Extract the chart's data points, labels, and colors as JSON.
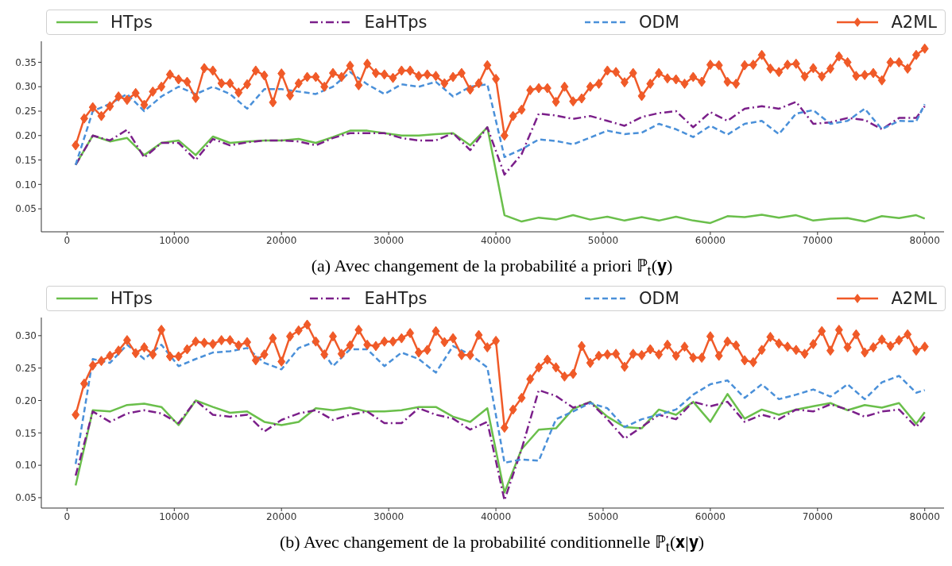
{
  "chart_data": [
    {
      "type": "line",
      "title": "(a) Avec changement de la probabilité a priori ℙ$_{t}$(𝐲)",
      "legend": "top",
      "x": [
        800,
        2400,
        4000,
        5600,
        7200,
        8800,
        10400,
        12000,
        13600,
        15200,
        16800,
        18400,
        20000,
        21600,
        23200,
        24800,
        26400,
        28000,
        29600,
        31200,
        32800,
        34400,
        36000,
        37600,
        39200,
        40800,
        42400,
        44000,
        45600,
        47200,
        48800,
        50400,
        52000,
        53600,
        55200,
        56800,
        58400,
        60000,
        61600,
        63200,
        64800,
        66400,
        68000,
        69600,
        71200,
        72800,
        74400,
        76000,
        77600,
        79200,
        80000
      ],
      "xlim": [
        -2400,
        81800
      ],
      "xticks": [
        0,
        10000,
        20000,
        30000,
        40000,
        50000,
        60000,
        70000,
        80000
      ],
      "ylim": [
        0.003,
        0.393
      ],
      "yticks": [
        {
          "value": 0.05,
          "label": "0.05"
        },
        {
          "value": 0.1,
          "label": "0.10"
        },
        {
          "value": 0.15,
          "label": "0.15"
        },
        {
          "value": 0.2,
          "label": "0.20"
        },
        {
          "value": 0.25,
          "label": "0.25"
        },
        {
          "value": 0.3,
          "label": "0.30"
        },
        {
          "value": 0.35,
          "label": "0.35"
        }
      ],
      "series": [
        {
          "name": "HTps",
          "color": "#6abf4b",
          "line_style": "solid",
          "marker": "none",
          "values": [
            0.14,
            0.2,
            0.188,
            0.195,
            0.16,
            0.185,
            0.19,
            0.16,
            0.198,
            0.185,
            0.188,
            0.19,
            0.19,
            0.193,
            0.185,
            0.197,
            0.21,
            0.21,
            0.205,
            0.2,
            0.2,
            0.203,
            0.205,
            0.18,
            0.217,
            0.037,
            0.024,
            0.032,
            0.028,
            0.037,
            0.028,
            0.034,
            0.026,
            0.033,
            0.026,
            0.034,
            0.026,
            0.021,
            0.035,
            0.033,
            0.038,
            0.032,
            0.037,
            0.026,
            0.03,
            0.031,
            0.024,
            0.035,
            0.031,
            0.037,
            0.03
          ]
        },
        {
          "name": "EaHTps",
          "color": "#7b1f8a",
          "line_style": "dashdot",
          "marker": "none",
          "values": [
            0.14,
            0.2,
            0.19,
            0.212,
            0.155,
            0.185,
            0.185,
            0.15,
            0.193,
            0.18,
            0.186,
            0.19,
            0.19,
            0.188,
            0.18,
            0.195,
            0.205,
            0.205,
            0.205,
            0.195,
            0.19,
            0.19,
            0.205,
            0.17,
            0.217,
            0.12,
            0.162,
            0.245,
            0.241,
            0.234,
            0.24,
            0.23,
            0.22,
            0.238,
            0.246,
            0.25,
            0.217,
            0.248,
            0.23,
            0.255,
            0.26,
            0.255,
            0.269,
            0.224,
            0.227,
            0.236,
            0.232,
            0.213,
            0.236,
            0.236,
            0.26
          ]
        },
        {
          "name": "ODM",
          "color": "#4a90d9",
          "line_style": "dashed",
          "marker": "none",
          "values": [
            0.14,
            0.25,
            0.265,
            0.285,
            0.25,
            0.28,
            0.3,
            0.285,
            0.3,
            0.285,
            0.255,
            0.295,
            0.295,
            0.29,
            0.285,
            0.3,
            0.33,
            0.305,
            0.285,
            0.305,
            0.3,
            0.31,
            0.28,
            0.3,
            0.305,
            0.156,
            0.172,
            0.192,
            0.189,
            0.182,
            0.196,
            0.21,
            0.203,
            0.206,
            0.224,
            0.213,
            0.197,
            0.22,
            0.202,
            0.224,
            0.23,
            0.203,
            0.245,
            0.252,
            0.224,
            0.23,
            0.255,
            0.213,
            0.23,
            0.229,
            0.264
          ]
        },
        {
          "name": "A2ML",
          "color": "#f05a28",
          "line_style": "solid",
          "marker": "diamond",
          "x": [
            800,
            1600,
            2400,
            3200,
            4000,
            4800,
            5600,
            6400,
            7200,
            8000,
            8800,
            9600,
            10400,
            11200,
            12000,
            12800,
            13600,
            14400,
            15200,
            16000,
            16800,
            17600,
            18400,
            19200,
            20000,
            20800,
            21600,
            22400,
            23200,
            24000,
            24800,
            25600,
            26400,
            27200,
            28000,
            28800,
            29600,
            30400,
            31200,
            32000,
            32800,
            33600,
            34400,
            35200,
            36000,
            36800,
            37600,
            38400,
            39200,
            40000,
            40800,
            41600,
            42400,
            43200,
            44000,
            44800,
            45600,
            46400,
            47200,
            48000,
            48800,
            49600,
            50400,
            51200,
            52000,
            52800,
            53600,
            54400,
            55200,
            56000,
            56800,
            57600,
            58400,
            59200,
            60000,
            60800,
            61600,
            62400,
            63200,
            64000,
            64800,
            65600,
            66400,
            67200,
            68000,
            68800,
            69600,
            70400,
            71200,
            72000,
            72800,
            73600,
            74400,
            75200,
            76000,
            76800,
            77600,
            78400,
            79200,
            80000
          ],
          "values": [
            0.18,
            0.235,
            0.258,
            0.24,
            0.26,
            0.28,
            0.273,
            0.287,
            0.263,
            0.29,
            0.3,
            0.325,
            0.315,
            0.31,
            0.277,
            0.338,
            0.333,
            0.307,
            0.307,
            0.288,
            0.305,
            0.333,
            0.323,
            0.268,
            0.327,
            0.282,
            0.307,
            0.32,
            0.32,
            0.3,
            0.328,
            0.32,
            0.343,
            0.303,
            0.347,
            0.328,
            0.325,
            0.318,
            0.333,
            0.333,
            0.322,
            0.325,
            0.322,
            0.307,
            0.32,
            0.328,
            0.294,
            0.307,
            0.344,
            0.316,
            0.2,
            0.24,
            0.253,
            0.293,
            0.297,
            0.297,
            0.269,
            0.3,
            0.27,
            0.276,
            0.3,
            0.306,
            0.333,
            0.33,
            0.309,
            0.328,
            0.281,
            0.306,
            0.328,
            0.317,
            0.315,
            0.306,
            0.32,
            0.31,
            0.345,
            0.344,
            0.31,
            0.306,
            0.344,
            0.345,
            0.365,
            0.337,
            0.33,
            0.345,
            0.347,
            0.321,
            0.338,
            0.321,
            0.337,
            0.362,
            0.35,
            0.322,
            0.324,
            0.328,
            0.313,
            0.35,
            0.35,
            0.337,
            0.365,
            0.378
          ]
        }
      ]
    },
    {
      "type": "line",
      "title": "(b) Avec changement de la probabilité conditionnelle ℙ$_{t}$(𝐱|𝐲)",
      "legend": "top",
      "x": [
        800,
        2400,
        4000,
        5600,
        7200,
        8800,
        10400,
        12000,
        13600,
        15200,
        16800,
        18400,
        20000,
        21600,
        23200,
        24800,
        26400,
        28000,
        29600,
        31200,
        32800,
        34400,
        36000,
        37600,
        39200,
        40800,
        42400,
        44000,
        45600,
        47200,
        48800,
        50400,
        52000,
        53600,
        55200,
        56800,
        58400,
        60000,
        61600,
        63200,
        64800,
        66400,
        68000,
        69600,
        71200,
        72800,
        74400,
        76000,
        77600,
        79200,
        80000
      ],
      "xlim": [
        -2400,
        81800
      ],
      "xticks": [
        0,
        10000,
        20000,
        30000,
        40000,
        50000,
        60000,
        70000,
        80000
      ],
      "ylim": [
        0.034,
        0.328
      ],
      "yticks": [
        {
          "value": 0.05,
          "label": "0.05"
        },
        {
          "value": 0.1,
          "label": "0.10"
        },
        {
          "value": 0.15,
          "label": "0.15"
        },
        {
          "value": 0.2,
          "label": "0.20"
        },
        {
          "value": 0.25,
          "label": "0.25"
        },
        {
          "value": 0.3,
          "label": "0.30"
        }
      ],
      "series": [
        {
          "name": "HTps",
          "color": "#6abf4b",
          "line_style": "solid",
          "marker": "none",
          "values": [
            0.069,
            0.185,
            0.183,
            0.193,
            0.195,
            0.19,
            0.162,
            0.2,
            0.19,
            0.181,
            0.183,
            0.167,
            0.162,
            0.167,
            0.188,
            0.185,
            0.189,
            0.183,
            0.183,
            0.185,
            0.19,
            0.19,
            0.175,
            0.167,
            0.188,
            0.058,
            0.125,
            0.155,
            0.157,
            0.187,
            0.198,
            0.175,
            0.159,
            0.157,
            0.186,
            0.178,
            0.198,
            0.167,
            0.21,
            0.172,
            0.186,
            0.178,
            0.186,
            0.191,
            0.196,
            0.185,
            0.193,
            0.189,
            0.196,
            0.164,
            0.182
          ]
        },
        {
          "name": "EaHTps",
          "color": "#7b1f8a",
          "line_style": "dashdot",
          "marker": "none",
          "values": [
            0.084,
            0.183,
            0.167,
            0.18,
            0.185,
            0.18,
            0.165,
            0.2,
            0.178,
            0.175,
            0.178,
            0.152,
            0.17,
            0.18,
            0.185,
            0.17,
            0.178,
            0.183,
            0.165,
            0.165,
            0.188,
            0.178,
            0.172,
            0.155,
            0.167,
            0.046,
            0.125,
            0.216,
            0.207,
            0.189,
            0.197,
            0.171,
            0.141,
            0.159,
            0.178,
            0.171,
            0.198,
            0.191,
            0.198,
            0.167,
            0.178,
            0.171,
            0.186,
            0.183,
            0.194,
            0.186,
            0.175,
            0.183,
            0.186,
            0.159,
            0.175
          ]
        },
        {
          "name": "ODM",
          "color": "#4a90d9",
          "line_style": "dashed",
          "marker": "none",
          "values": [
            0.102,
            0.264,
            0.258,
            0.286,
            0.264,
            0.286,
            0.253,
            0.264,
            0.274,
            0.276,
            0.281,
            0.258,
            0.248,
            0.281,
            0.291,
            0.253,
            0.279,
            0.279,
            0.253,
            0.274,
            0.264,
            0.243,
            0.284,
            0.271,
            0.251,
            0.104,
            0.109,
            0.107,
            0.171,
            0.183,
            0.196,
            0.188,
            0.159,
            0.171,
            0.178,
            0.186,
            0.209,
            0.225,
            0.231,
            0.204,
            0.225,
            0.202,
            0.209,
            0.217,
            0.206,
            0.225,
            0.202,
            0.228,
            0.238,
            0.212,
            0.216
          ]
        },
        {
          "name": "A2ML",
          "color": "#f05a28",
          "line_style": "solid",
          "marker": "diamond",
          "x": [
            800,
            1600,
            2400,
            3200,
            4000,
            4800,
            5600,
            6400,
            7200,
            8000,
            8800,
            9600,
            10400,
            11200,
            12000,
            12800,
            13600,
            14400,
            15200,
            16000,
            16800,
            17600,
            18400,
            19200,
            20000,
            20800,
            21600,
            22400,
            23200,
            24000,
            24800,
            25600,
            26400,
            27200,
            28000,
            28800,
            29600,
            30400,
            31200,
            32000,
            32800,
            33600,
            34400,
            35200,
            36000,
            36800,
            37600,
            38400,
            39200,
            40000,
            40800,
            41600,
            42400,
            43200,
            44000,
            44800,
            45600,
            46400,
            47200,
            48000,
            48800,
            49600,
            50400,
            51200,
            52000,
            52800,
            53600,
            54400,
            55200,
            56000,
            56800,
            57600,
            58400,
            59200,
            60000,
            60800,
            61600,
            62400,
            63200,
            64000,
            64800,
            65600,
            66400,
            67200,
            68000,
            68800,
            69600,
            70400,
            71200,
            72000,
            72800,
            73600,
            74400,
            75200,
            76000,
            76800,
            77600,
            78400,
            79200,
            80000
          ],
          "values": [
            0.178,
            0.226,
            0.254,
            0.261,
            0.269,
            0.277,
            0.293,
            0.273,
            0.282,
            0.271,
            0.309,
            0.268,
            0.268,
            0.279,
            0.291,
            0.289,
            0.287,
            0.293,
            0.293,
            0.285,
            0.29,
            0.262,
            0.271,
            0.296,
            0.26,
            0.299,
            0.308,
            0.317,
            0.291,
            0.271,
            0.299,
            0.272,
            0.285,
            0.309,
            0.286,
            0.284,
            0.291,
            0.291,
            0.296,
            0.304,
            0.274,
            0.278,
            0.307,
            0.29,
            0.296,
            0.27,
            0.27,
            0.301,
            0.282,
            0.292,
            0.158,
            0.186,
            0.204,
            0.233,
            0.251,
            0.263,
            0.251,
            0.237,
            0.241,
            0.284,
            0.258,
            0.269,
            0.271,
            0.272,
            0.252,
            0.272,
            0.27,
            0.279,
            0.271,
            0.286,
            0.269,
            0.283,
            0.266,
            0.266,
            0.299,
            0.269,
            0.291,
            0.285,
            0.262,
            0.259,
            0.278,
            0.298,
            0.288,
            0.283,
            0.278,
            0.272,
            0.287,
            0.307,
            0.277,
            0.309,
            0.282,
            0.302,
            0.274,
            0.282,
            0.294,
            0.284,
            0.293,
            0.302,
            0.277,
            0.283
          ]
        }
      ]
    }
  ]
}
